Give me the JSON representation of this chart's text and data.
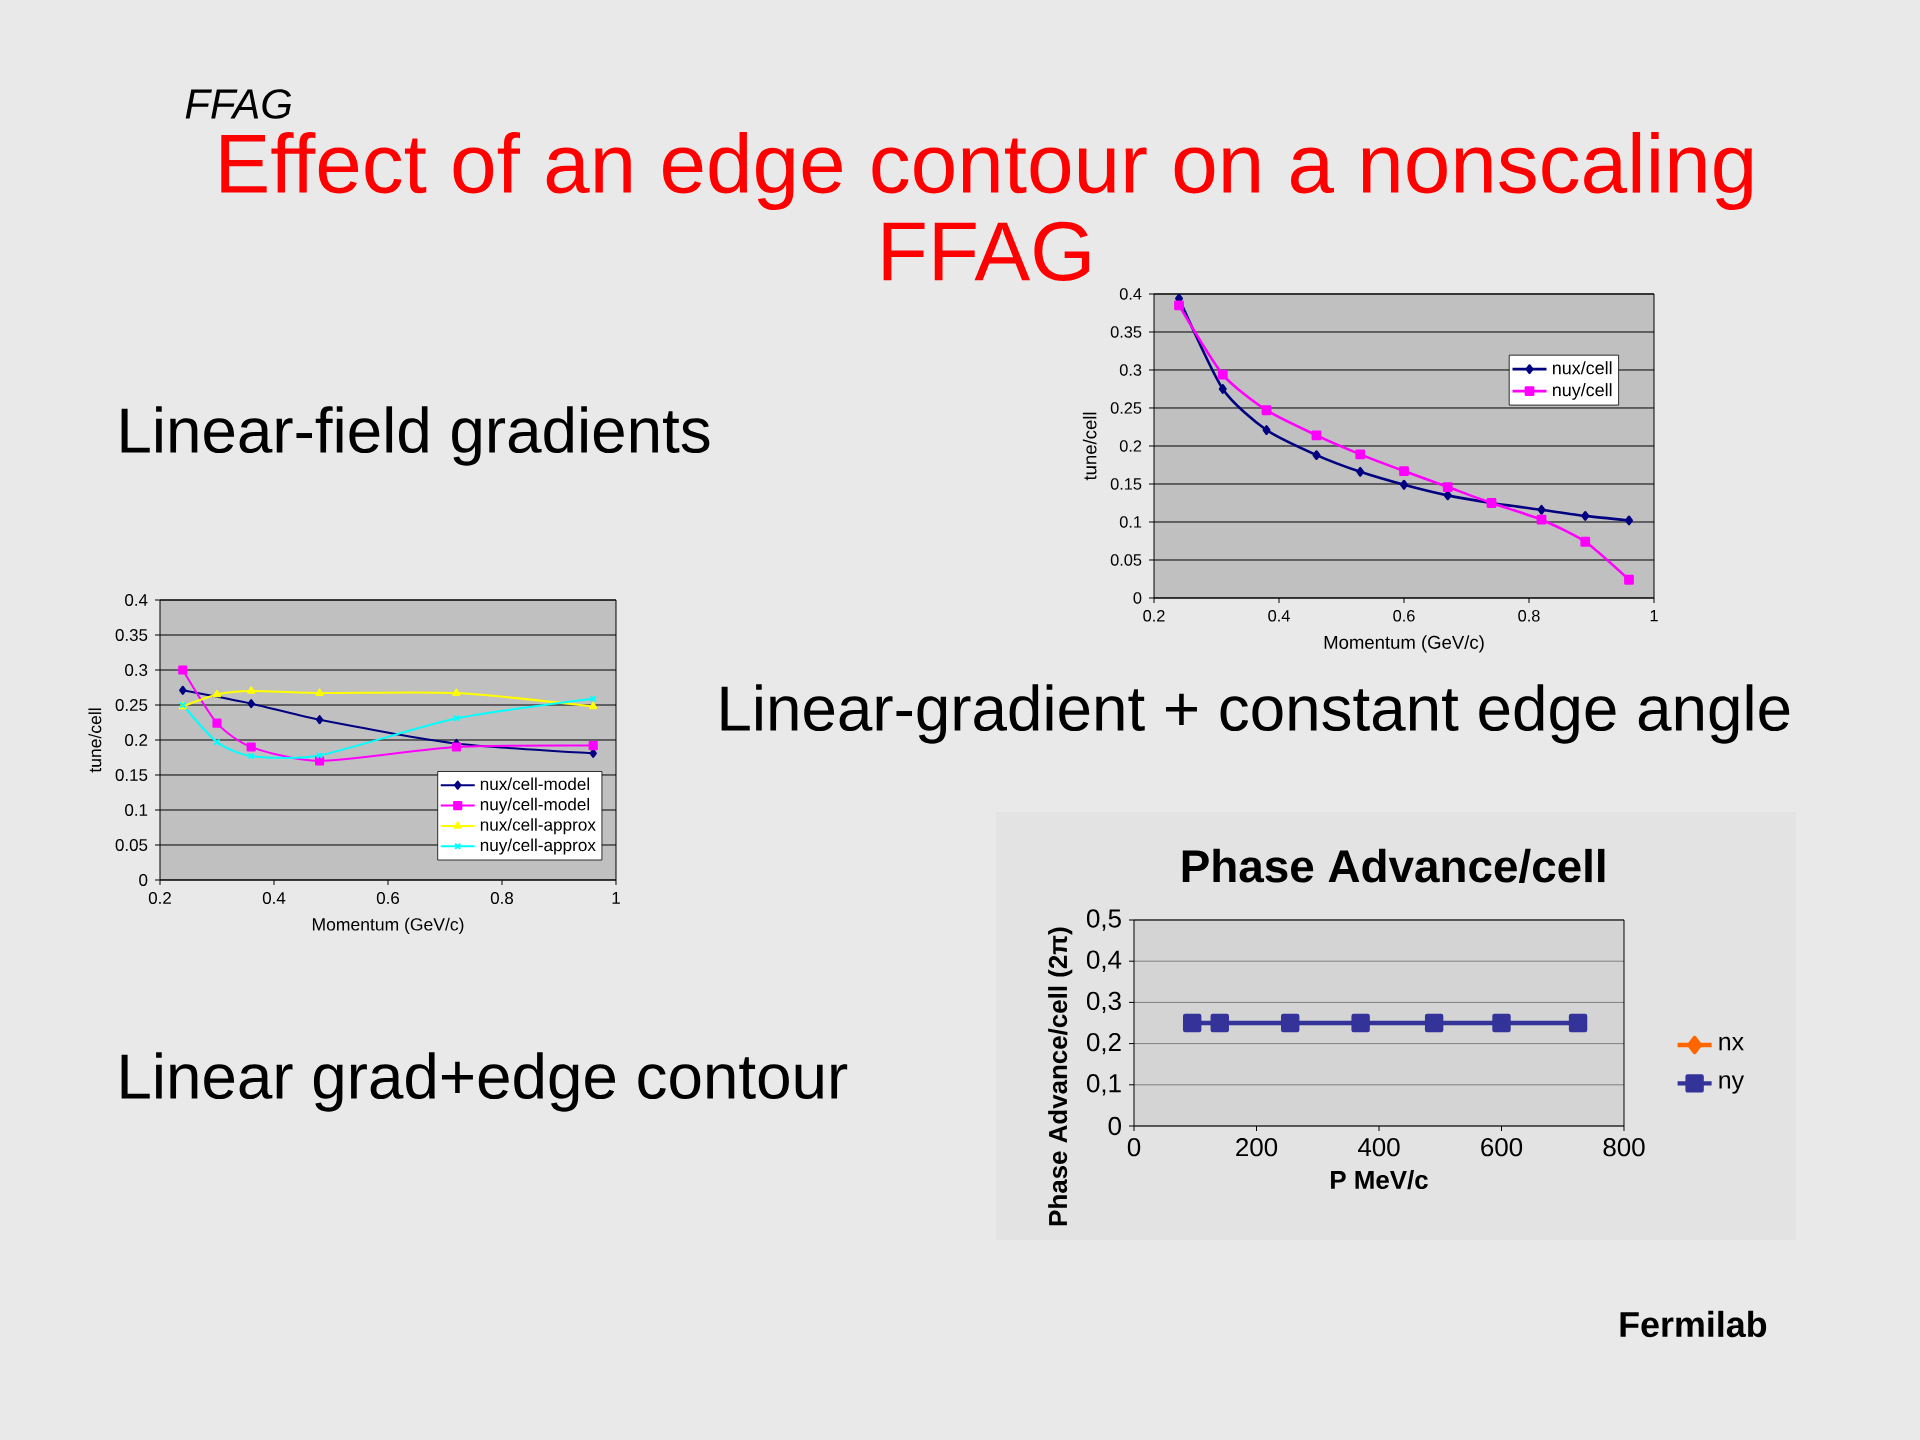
{
  "chart_data": [
    {
      "type": "other",
      "title": "Effect of an edge contour on a nonscaling FFAG",
      "annotations": [
        "FFAG",
        "Linear-field gradients",
        "Linear-gradient + constant edge angle",
        "Linear grad+edge contour",
        "Fermilab"
      ]
    },
    {
      "type": "line",
      "xlabel": "Momentum (GeV/c)",
      "ylabel": "tune/cell",
      "x": [
        0.24,
        0.31,
        0.38,
        0.46,
        0.53,
        0.6,
        0.67,
        0.74,
        0.82,
        0.89,
        0.96
      ],
      "series": [
        {
          "name": "nux/cell",
          "color": "#000080",
          "marker": "diamond",
          "values": [
            0.394,
            0.275,
            0.221,
            0.188,
            0.166,
            0.149,
            0.135,
            0.125,
            0.116,
            0.108,
            0.102
          ]
        },
        {
          "name": "nuy/cell",
          "color": "#ff00ff",
          "marker": "square",
          "values": [
            0.385,
            0.294,
            0.247,
            0.214,
            0.189,
            0.167,
            0.146,
            0.125,
            0.103,
            0.074,
            0.024
          ]
        }
      ],
      "xlim": [
        0.2,
        1
      ],
      "ylim": [
        0,
        0.4
      ],
      "xticks": [
        0.2,
        0.4,
        0.6,
        0.8,
        1
      ],
      "yticks": [
        0,
        0.05,
        0.1,
        0.15,
        0.2,
        0.25,
        0.3,
        0.35,
        0.4
      ],
      "grid": "y",
      "legend": "top right"
    },
    {
      "type": "line",
      "xlabel": "Momentum (GeV/c)",
      "ylabel": "tune/cell",
      "x": [
        0.24,
        0.3,
        0.36,
        0.48,
        0.72,
        0.96
      ],
      "series": [
        {
          "name": "nux/cell-model",
          "color": "#000080",
          "marker": "diamond",
          "x": [
            0.24,
            0.36,
            0.48,
            0.72,
            0.96
          ],
          "values": [
            0.271,
            0.252,
            0.229,
            0.195,
            0.181
          ]
        },
        {
          "name": "nuy/cell-model",
          "color": "#ff00ff",
          "marker": "square",
          "values": [
            0.3,
            0.224,
            0.19,
            0.17,
            0.19,
            0.192
          ]
        },
        {
          "name": "nux/cell-approx",
          "color": "#ffff00",
          "marker": "triangle",
          "values": [
            0.248,
            0.265,
            0.27,
            0.267,
            0.267,
            0.248
          ]
        },
        {
          "name": "nuy/cell-approx",
          "color": "#00ffff",
          "marker": "cross",
          "values": [
            0.25,
            0.197,
            0.177,
            0.178,
            0.231,
            0.259
          ]
        }
      ],
      "xlim": [
        0.2,
        1
      ],
      "ylim": [
        0,
        0.4
      ],
      "xticks": [
        0.2,
        0.4,
        0.6,
        0.8,
        1
      ],
      "yticks": [
        0,
        0.05,
        0.1,
        0.15,
        0.2,
        0.25,
        0.3,
        0.35,
        0.4
      ],
      "grid": "y",
      "legend": "bottom right"
    },
    {
      "type": "line",
      "title": "Phase Advance/cell",
      "xlabel": "P MeV/c",
      "ylabel": "Phase Advance/cell (2π)",
      "x": [
        95,
        140,
        255,
        370,
        490,
        600,
        725
      ],
      "series": [
        {
          "name": "nx",
          "color": "#ff6600",
          "marker": "diamond",
          "values": [
            null,
            null,
            null,
            null,
            null,
            null,
            null
          ]
        },
        {
          "name": "ny",
          "color": "#333399",
          "marker": "square",
          "values": [
            0.25,
            0.25,
            0.25,
            0.25,
            0.25,
            0.25,
            0.25
          ]
        }
      ],
      "xlim": [
        0,
        800
      ],
      "ylim": [
        0,
        0.5
      ],
      "xticks": [
        0,
        200,
        400,
        600,
        800
      ],
      "yticks": [
        0,
        {
          "value": 0.1,
          "label": "0,1"
        },
        {
          "value": 0.2,
          "label": "0,2"
        },
        {
          "value": 0.3,
          "label": "0,3"
        },
        {
          "value": 0.4,
          "label": "0,4"
        },
        {
          "value": 0.5,
          "label": "0,5"
        }
      ],
      "grid": "y",
      "legend": "right"
    }
  ]
}
